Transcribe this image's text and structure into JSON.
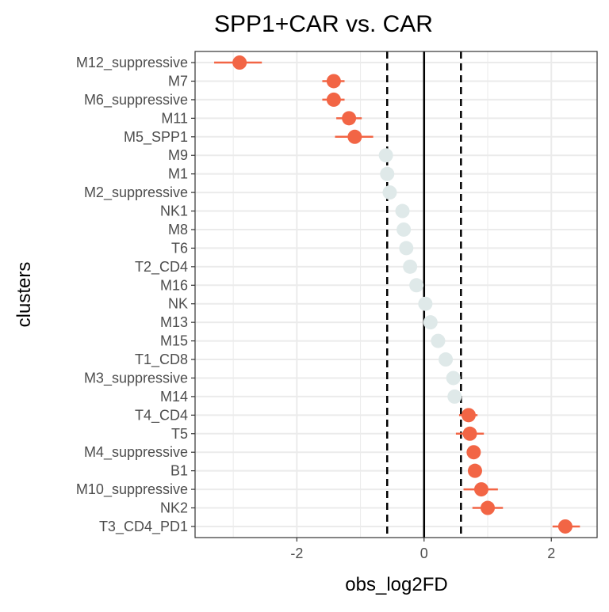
{
  "chart_data": {
    "type": "scatter",
    "title": "SPP1+CAR vs. CAR",
    "xlabel": "obs_log2FD",
    "ylabel": "clusters",
    "xlim": [
      -3.6,
      2.72
    ],
    "xticks": [
      -2,
      0,
      2
    ],
    "xtick_labels": [
      "-2",
      "0",
      "2"
    ],
    "reference_lines": {
      "solid": 0,
      "dashed": [
        -0.58,
        0.58
      ]
    },
    "grid": true,
    "colors": {
      "significant": "#f26545",
      "not_significant": "#dfe9e9",
      "axis": "#333333",
      "grid": "#ebebeb"
    },
    "points": [
      {
        "cluster": "M12_suppressive",
        "value": -2.9,
        "lo": -3.3,
        "hi": -2.55,
        "significant": true
      },
      {
        "cluster": "M7",
        "value": -1.42,
        "lo": -1.6,
        "hi": -1.25,
        "significant": true
      },
      {
        "cluster": "M6_suppressive",
        "value": -1.42,
        "lo": -1.6,
        "hi": -1.25,
        "significant": true
      },
      {
        "cluster": "M11",
        "value": -1.18,
        "lo": -1.38,
        "hi": -0.98,
        "significant": true
      },
      {
        "cluster": "M5_SPP1",
        "value": -1.09,
        "lo": -1.4,
        "hi": -0.8,
        "significant": true
      },
      {
        "cluster": "M9",
        "value": -0.6,
        "lo": -0.6,
        "hi": -0.6,
        "significant": false
      },
      {
        "cluster": "M1",
        "value": -0.58,
        "lo": -0.58,
        "hi": -0.58,
        "significant": false
      },
      {
        "cluster": "M2_suppressive",
        "value": -0.54,
        "lo": -0.54,
        "hi": -0.54,
        "significant": false
      },
      {
        "cluster": "NK1",
        "value": -0.34,
        "lo": -0.34,
        "hi": -0.34,
        "significant": false
      },
      {
        "cluster": "M8",
        "value": -0.32,
        "lo": -0.32,
        "hi": -0.32,
        "significant": false
      },
      {
        "cluster": "T6",
        "value": -0.28,
        "lo": -0.28,
        "hi": -0.28,
        "significant": false
      },
      {
        "cluster": "T2_CD4",
        "value": -0.22,
        "lo": -0.22,
        "hi": -0.22,
        "significant": false
      },
      {
        "cluster": "M16",
        "value": -0.12,
        "lo": -0.12,
        "hi": -0.12,
        "significant": false
      },
      {
        "cluster": "NK",
        "value": 0.02,
        "lo": 0.02,
        "hi": 0.02,
        "significant": false
      },
      {
        "cluster": "M13",
        "value": 0.1,
        "lo": 0.1,
        "hi": 0.1,
        "significant": false
      },
      {
        "cluster": "M15",
        "value": 0.22,
        "lo": 0.22,
        "hi": 0.22,
        "significant": false
      },
      {
        "cluster": "T1_CD8",
        "value": 0.34,
        "lo": 0.34,
        "hi": 0.34,
        "significant": false
      },
      {
        "cluster": "M3_suppressive",
        "value": 0.46,
        "lo": 0.46,
        "hi": 0.46,
        "significant": false
      },
      {
        "cluster": "M14",
        "value": 0.48,
        "lo": 0.48,
        "hi": 0.48,
        "significant": false
      },
      {
        "cluster": "T4_CD4",
        "value": 0.7,
        "lo": 0.55,
        "hi": 0.84,
        "significant": true
      },
      {
        "cluster": "T5",
        "value": 0.72,
        "lo": 0.5,
        "hi": 0.94,
        "significant": true
      },
      {
        "cluster": "M4_suppressive",
        "value": 0.78,
        "lo": 0.7,
        "hi": 0.86,
        "significant": true
      },
      {
        "cluster": "B1",
        "value": 0.8,
        "lo": 0.72,
        "hi": 0.88,
        "significant": true
      },
      {
        "cluster": "M10_suppressive",
        "value": 0.9,
        "lo": 0.62,
        "hi": 1.16,
        "significant": true
      },
      {
        "cluster": "NK2",
        "value": 1.0,
        "lo": 0.76,
        "hi": 1.24,
        "significant": true
      },
      {
        "cluster": "T3_CD4_PD1",
        "value": 2.22,
        "lo": 2.02,
        "hi": 2.45,
        "significant": true
      }
    ]
  }
}
